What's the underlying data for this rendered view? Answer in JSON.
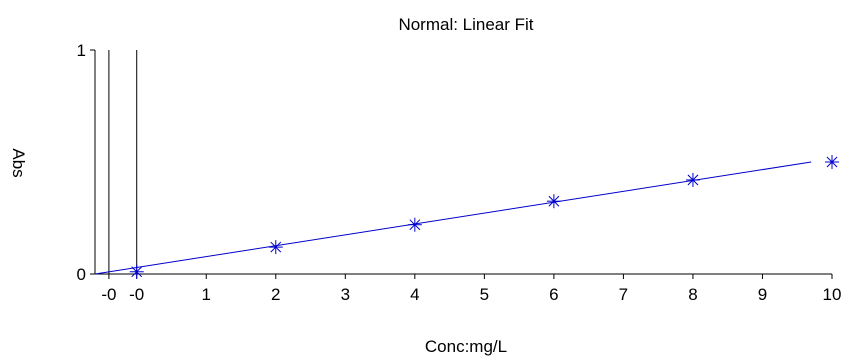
{
  "chart_data": {
    "type": "scatter",
    "title": "Normal: Linear Fit",
    "xlabel": "Conc:mg/L",
    "ylabel": "Abs",
    "xlim": [
      -0.6,
      10
    ],
    "ylim": [
      0,
      1
    ],
    "x_ticks": [
      {
        "value": -0.4,
        "label": "-0"
      },
      {
        "value": 0,
        "label": "-0"
      },
      {
        "value": 1,
        "label": "1"
      },
      {
        "value": 2,
        "label": "2"
      },
      {
        "value": 3,
        "label": "3"
      },
      {
        "value": 4,
        "label": "4"
      },
      {
        "value": 5,
        "label": "5"
      },
      {
        "value": 6,
        "label": "6"
      },
      {
        "value": 7,
        "label": "7"
      },
      {
        "value": 8,
        "label": "8"
      },
      {
        "value": 9,
        "label": "9"
      },
      {
        "value": 10,
        "label": "10"
      }
    ],
    "y_ticks": [
      {
        "value": 0,
        "label": "0"
      },
      {
        "value": 1,
        "label": "1"
      }
    ],
    "vertical_lines": [
      -0.4,
      0
    ],
    "series": [
      {
        "marker": "asterisk",
        "color": "#0000cc",
        "points": [
          {
            "x": 0,
            "y": 0.01
          },
          {
            "x": 2,
            "y": 0.12
          },
          {
            "x": 4,
            "y": 0.22
          },
          {
            "x": 6,
            "y": 0.325
          },
          {
            "x": 8,
            "y": 0.42
          },
          {
            "x": 10,
            "y": 0.5
          }
        ]
      }
    ],
    "fit_line": {
      "color": "#0000cc",
      "from": {
        "x": -0.6,
        "y": 0.0
      },
      "to": {
        "x": 9.7,
        "y": 0.5
      }
    },
    "grid": false,
    "legend": "none"
  }
}
